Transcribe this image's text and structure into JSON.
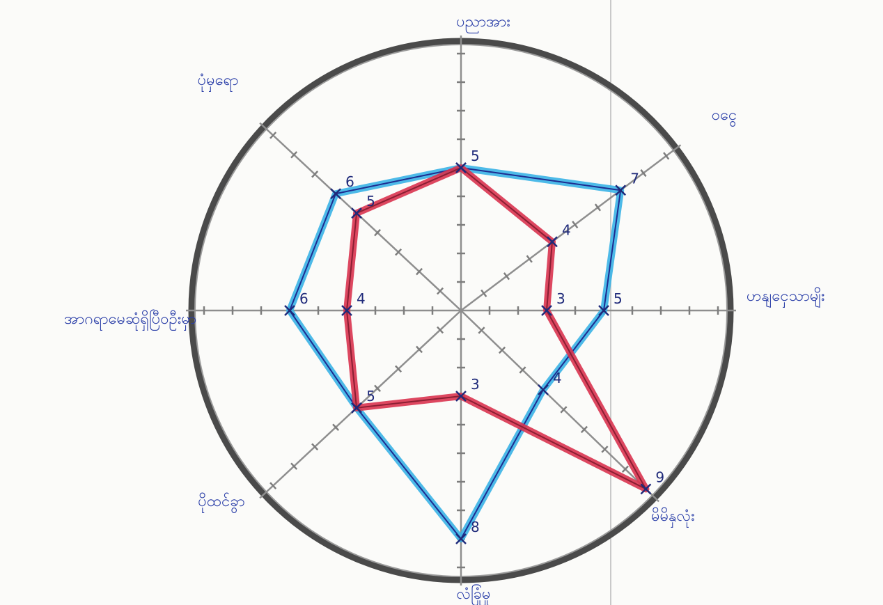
{
  "chart_data": {
    "type": "radar",
    "axes": [
      "ပညာအား",
      "ဝငွေ",
      "ဟနျငှေသာမျိး",
      "မိမိနှလုံး",
      "လံခြုံမှု",
      "ပိုထင်ခွာ",
      "အာဂရာမေဆုံရှိပြီဝဦးမှာ",
      "ပုံမှရော"
    ],
    "scale": {
      "min": 0,
      "max": 10,
      "ticks_per_axis": 10
    },
    "grid": true,
    "series": [
      {
        "color": "#3ab3e6",
        "values": [
          5,
          7,
          5,
          4,
          8,
          5,
          6,
          6
        ],
        "labels": [
          "5",
          "7",
          "5",
          "4",
          "8",
          "5",
          "6",
          "6"
        ]
      },
      {
        "color": "#d9334f",
        "values": [
          5,
          4,
          3,
          9,
          3,
          5,
          4,
          5
        ],
        "labels": [
          "",
          "4",
          "3",
          "9",
          "3",
          "",
          "4",
          "5"
        ]
      }
    ]
  }
}
